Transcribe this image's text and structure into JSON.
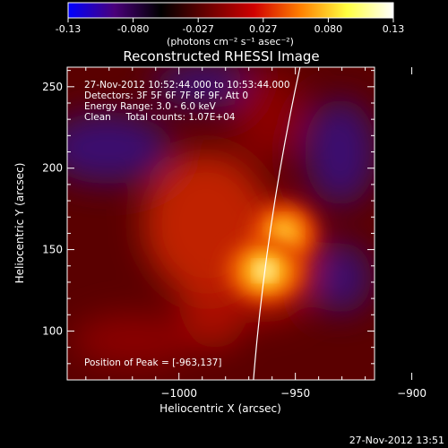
{
  "chart_data": {
    "type": "heatmap",
    "title": "Reconstructed RHESSI Image",
    "colorbar": {
      "label": "(photons cm⁻² s⁻¹ asec⁻²)",
      "range": [
        -0.13,
        0.13
      ],
      "ticks": [
        "-0.13",
        "-0.080",
        "-0.027",
        "0.027",
        "0.080",
        "0.13"
      ],
      "colors": [
        "#0000ff",
        "#4a007a",
        "#000000",
        "#6a0000",
        "#d00000",
        "#ff7f00",
        "#ffff40",
        "#ffffff"
      ]
    },
    "xlabel": "Heliocentric X (arcsec)",
    "ylabel": "Heliocentric Y (arcsec)",
    "xlim": [
      -1048,
      -916
    ],
    "ylim": [
      70,
      262
    ],
    "xticks": [
      -1000,
      -950,
      -900
    ],
    "xtick_labels": [
      "−1000",
      "−950",
      "−900"
    ],
    "yticks": [
      100,
      150,
      200,
      250
    ],
    "ytick_labels": [
      "100",
      "150",
      "200",
      "250"
    ],
    "annotations": [
      "27-Nov-2012 10:52:44.000 to 10:53:44.000",
      "Detectors: 3F 5F 6F 7F 8F 9F, Att 0",
      "Energy Range: 3.0 - 6.0 keV",
      "Clean     Total counts: 1.07E+04"
    ],
    "peak_label": "Position of Peak = [-963,137]",
    "peak": [
      -963,
      137
    ],
    "secondary_source": [
      -955,
      160
    ],
    "limb_line": [
      [
        -968,
        70
      ],
      [
        -948,
        262
      ]
    ]
  },
  "footer": {
    "timestamp": "27-Nov-2012 13:51"
  }
}
